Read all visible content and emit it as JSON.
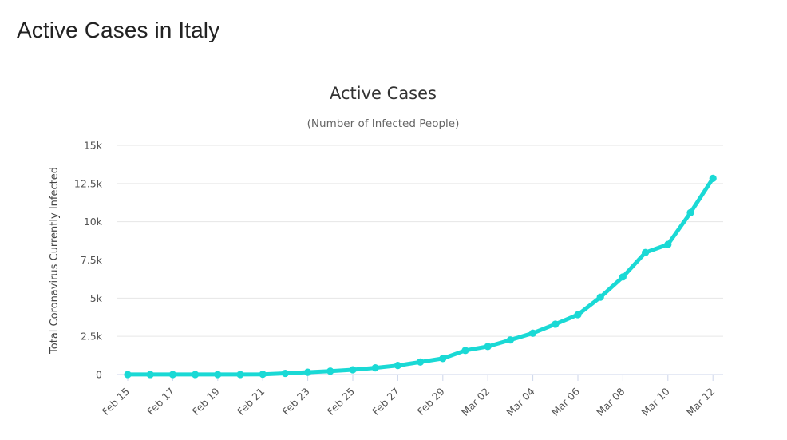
{
  "page": {
    "heading": "Active Cases in Italy"
  },
  "colors": {
    "series": "#1ad9d5"
  },
  "chart_data": {
    "type": "line",
    "title": "Active Cases",
    "subtitle": "(Number of Infected People)",
    "ylabel": "Total Coronavirus Currently Infected",
    "xlabel": "",
    "ylim": [
      0,
      15000
    ],
    "yticks": [
      0,
      2500,
      5000,
      7500,
      10000,
      12500,
      15000
    ],
    "ytick_labels": [
      "0",
      "2.5k",
      "5k",
      "7.5k",
      "10k",
      "12.5k",
      "15k"
    ],
    "grid": true,
    "legend": false,
    "categories": [
      "Feb 15",
      "Feb 16",
      "Feb 17",
      "Feb 18",
      "Feb 19",
      "Feb 20",
      "Feb 21",
      "Feb 22",
      "Feb 23",
      "Feb 24",
      "Feb 25",
      "Feb 26",
      "Feb 27",
      "Feb 28",
      "Feb 29",
      "Mar 01",
      "Mar 02",
      "Mar 03",
      "Mar 04",
      "Mar 05",
      "Mar 06",
      "Mar 07",
      "Mar 08",
      "Mar 09",
      "Mar 10",
      "Mar 11",
      "Mar 12"
    ],
    "xtick_labels": [
      "Feb 15",
      "Feb 17",
      "Feb 19",
      "Feb 21",
      "Feb 23",
      "Feb 25",
      "Feb 27",
      "Feb 29",
      "Mar 02",
      "Mar 04",
      "Mar 06",
      "Mar 08",
      "Mar 10",
      "Mar 12"
    ],
    "series": [
      {
        "values": [
          3,
          3,
          3,
          3,
          3,
          3,
          17,
          76,
          150,
          221,
          311,
          438,
          593,
          821,
          1049,
          1577,
          1835,
          2263,
          2706,
          3296,
          3916,
          5061,
          6387,
          7985,
          8514,
          10590,
          12839
        ]
      }
    ]
  }
}
